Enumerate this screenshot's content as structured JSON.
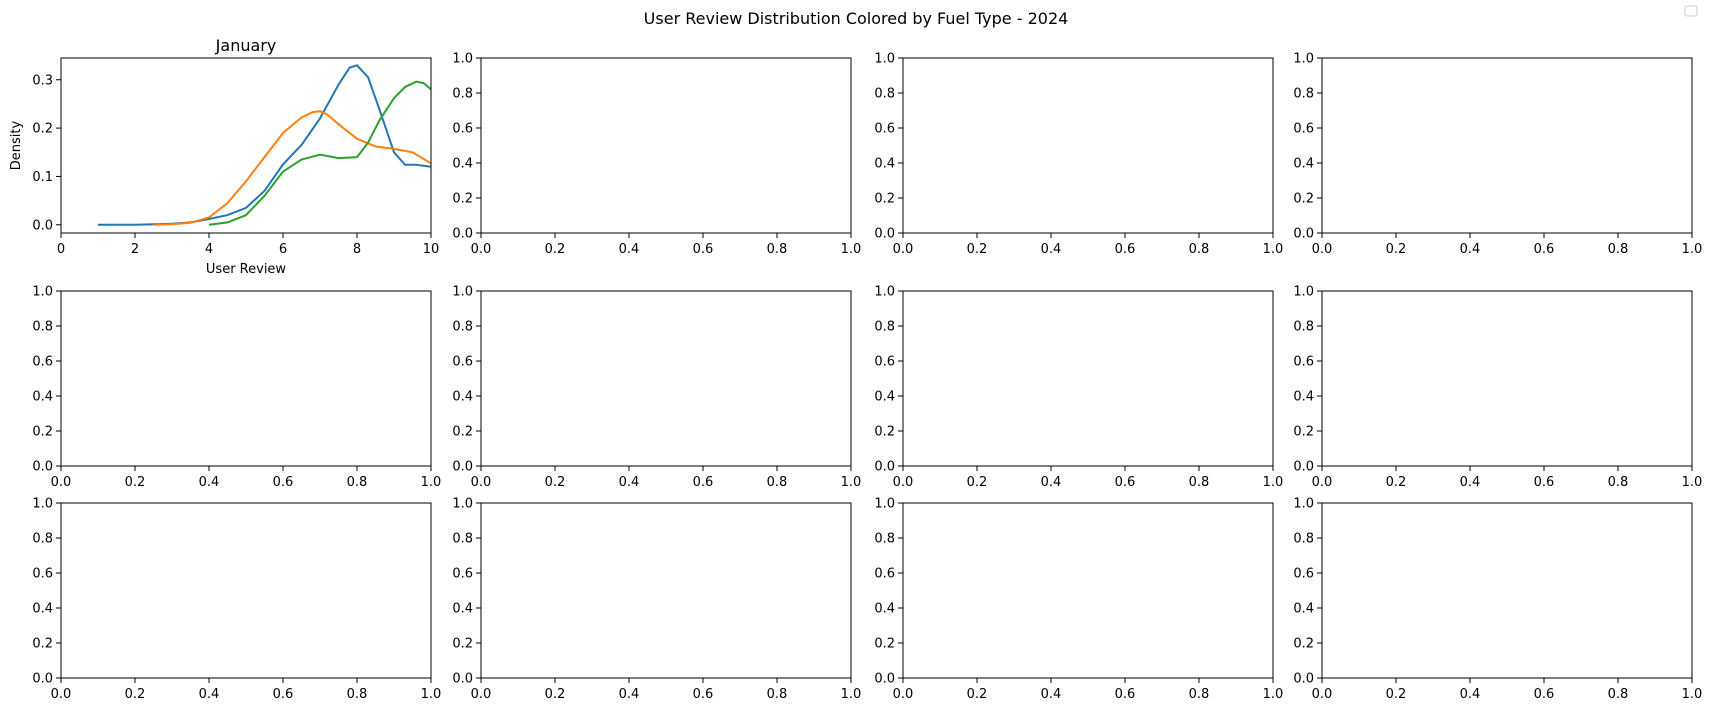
{
  "figure": {
    "title": "User Review Distribution Colored by Fuel Type - 2024"
  },
  "chart_data": [
    {
      "type": "line",
      "title": "January",
      "xlabel": "User Review",
      "ylabel": "Density",
      "xlim": [
        0,
        10
      ],
      "ylim": [
        -0.017,
        0.345
      ],
      "xticks": [
        0,
        2,
        4,
        6,
        8,
        10
      ],
      "yticks": [
        0.0,
        0.1,
        0.2,
        0.3
      ],
      "grid": false,
      "legend": "top-right",
      "series": [
        {
          "color": "#1f77b4",
          "x": [
            1.0,
            2.0,
            3.0,
            3.5,
            4.0,
            4.5,
            5.0,
            5.5,
            6.0,
            6.5,
            7.0,
            7.5,
            7.8,
            8.0,
            8.3,
            8.6,
            9.0,
            9.3,
            9.6,
            10.0
          ],
          "y": [
            0.0,
            0.0,
            0.002,
            0.005,
            0.012,
            0.02,
            0.035,
            0.07,
            0.125,
            0.165,
            0.22,
            0.29,
            0.325,
            0.33,
            0.305,
            0.24,
            0.15,
            0.124,
            0.124,
            0.12
          ]
        },
        {
          "color": "#ff7f0e",
          "x": [
            2.5,
            3.0,
            3.5,
            4.0,
            4.5,
            5.0,
            5.5,
            6.0,
            6.5,
            6.8,
            7.0,
            7.2,
            7.5,
            8.0,
            8.5,
            9.0,
            9.5,
            10.0
          ],
          "y": [
            0.0,
            0.001,
            0.004,
            0.015,
            0.045,
            0.09,
            0.14,
            0.19,
            0.222,
            0.233,
            0.235,
            0.228,
            0.208,
            0.178,
            0.162,
            0.157,
            0.15,
            0.127
          ]
        },
        {
          "color": "#2ca02c",
          "x": [
            4.0,
            4.5,
            5.0,
            5.5,
            6.0,
            6.5,
            7.0,
            7.5,
            8.0,
            8.3,
            8.6,
            9.0,
            9.3,
            9.6,
            9.8,
            10.0
          ],
          "y": [
            0.0,
            0.005,
            0.02,
            0.06,
            0.11,
            0.135,
            0.145,
            0.138,
            0.14,
            0.17,
            0.215,
            0.262,
            0.285,
            0.296,
            0.293,
            0.28
          ]
        }
      ]
    },
    {
      "type": "line",
      "xlim": [
        0,
        1
      ],
      "ylim": [
        0,
        1
      ],
      "series": []
    },
    {
      "type": "line",
      "xlim": [
        0,
        1
      ],
      "ylim": [
        0,
        1
      ],
      "series": []
    },
    {
      "type": "line",
      "xlim": [
        0,
        1
      ],
      "ylim": [
        0,
        1
      ],
      "series": []
    },
    {
      "type": "line",
      "xlim": [
        0,
        1
      ],
      "ylim": [
        0,
        1
      ],
      "series": []
    },
    {
      "type": "line",
      "xlim": [
        0,
        1
      ],
      "ylim": [
        0,
        1
      ],
      "series": []
    },
    {
      "type": "line",
      "xlim": [
        0,
        1
      ],
      "ylim": [
        0,
        1
      ],
      "series": []
    },
    {
      "type": "line",
      "xlim": [
        0,
        1
      ],
      "ylim": [
        0,
        1
      ],
      "series": []
    },
    {
      "type": "line",
      "xlim": [
        0,
        1
      ],
      "ylim": [
        0,
        1
      ],
      "series": []
    },
    {
      "type": "line",
      "xlim": [
        0,
        1
      ],
      "ylim": [
        0,
        1
      ],
      "series": []
    },
    {
      "type": "line",
      "xlim": [
        0,
        1
      ],
      "ylim": [
        0,
        1
      ],
      "series": []
    },
    {
      "type": "line",
      "xlim": [
        0,
        1
      ],
      "ylim": [
        0,
        1
      ],
      "series": []
    }
  ]
}
